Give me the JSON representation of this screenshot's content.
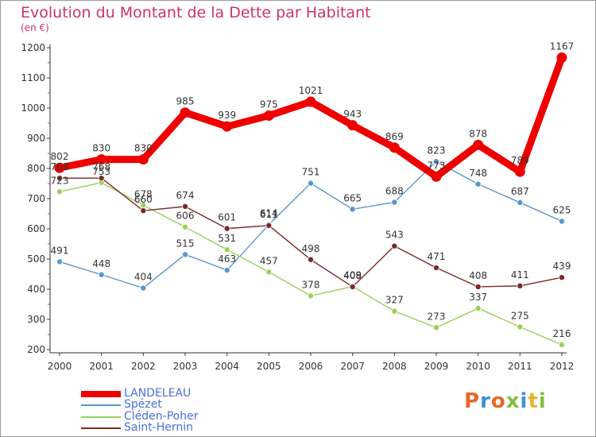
{
  "header": {
    "title": "Evolution du Montant de la Dette par Habitant",
    "unit": "(en €)"
  },
  "brand": {
    "text": "Proxiti",
    "colors": [
      "#e8672a",
      "#3f8fd8",
      "#e8672a",
      "#7fbf3f",
      "#3f8fd8",
      "#e8b52a",
      "#7fbf3f"
    ]
  },
  "chart_data": {
    "type": "line",
    "title": "Evolution du Montant de la Dette par Habitant",
    "ylabel": "(en €)",
    "xlabel": "",
    "ylim": [
      200,
      1200
    ],
    "yticks": [
      200,
      300,
      400,
      500,
      600,
      700,
      800,
      900,
      1000,
      1100,
      1200
    ],
    "x": [
      "2000",
      "2001",
      "2002",
      "2003",
      "2004",
      "2005",
      "2006",
      "2007",
      "2008",
      "2009",
      "2010",
      "2011",
      "2012"
    ],
    "grid": false,
    "legend_position": "bottom-left",
    "series": [
      {
        "name": "LANDELEAU",
        "color": "#ee0000",
        "values": [
          802,
          830,
          830,
          985,
          939,
          975,
          1021,
          943,
          869,
          773,
          878,
          789,
          1167
        ]
      },
      {
        "name": "Spézet",
        "color": "#5b95cf",
        "values": [
          491,
          448,
          404,
          515,
          463,
          614,
          751,
          665,
          688,
          823,
          748,
          687,
          625
        ]
      },
      {
        "name": "Cléden-Poher",
        "color": "#99d15a",
        "values": [
          723,
          753,
          678,
          606,
          531,
          457,
          378,
          409,
          327,
          273,
          337,
          275,
          216
        ]
      },
      {
        "name": "Saint-Hernin",
        "color": "#7a2a2a",
        "values": [
          768,
          768,
          660,
          674,
          601,
          611,
          498,
          408,
          543,
          471,
          408,
          411,
          439
        ]
      }
    ]
  }
}
